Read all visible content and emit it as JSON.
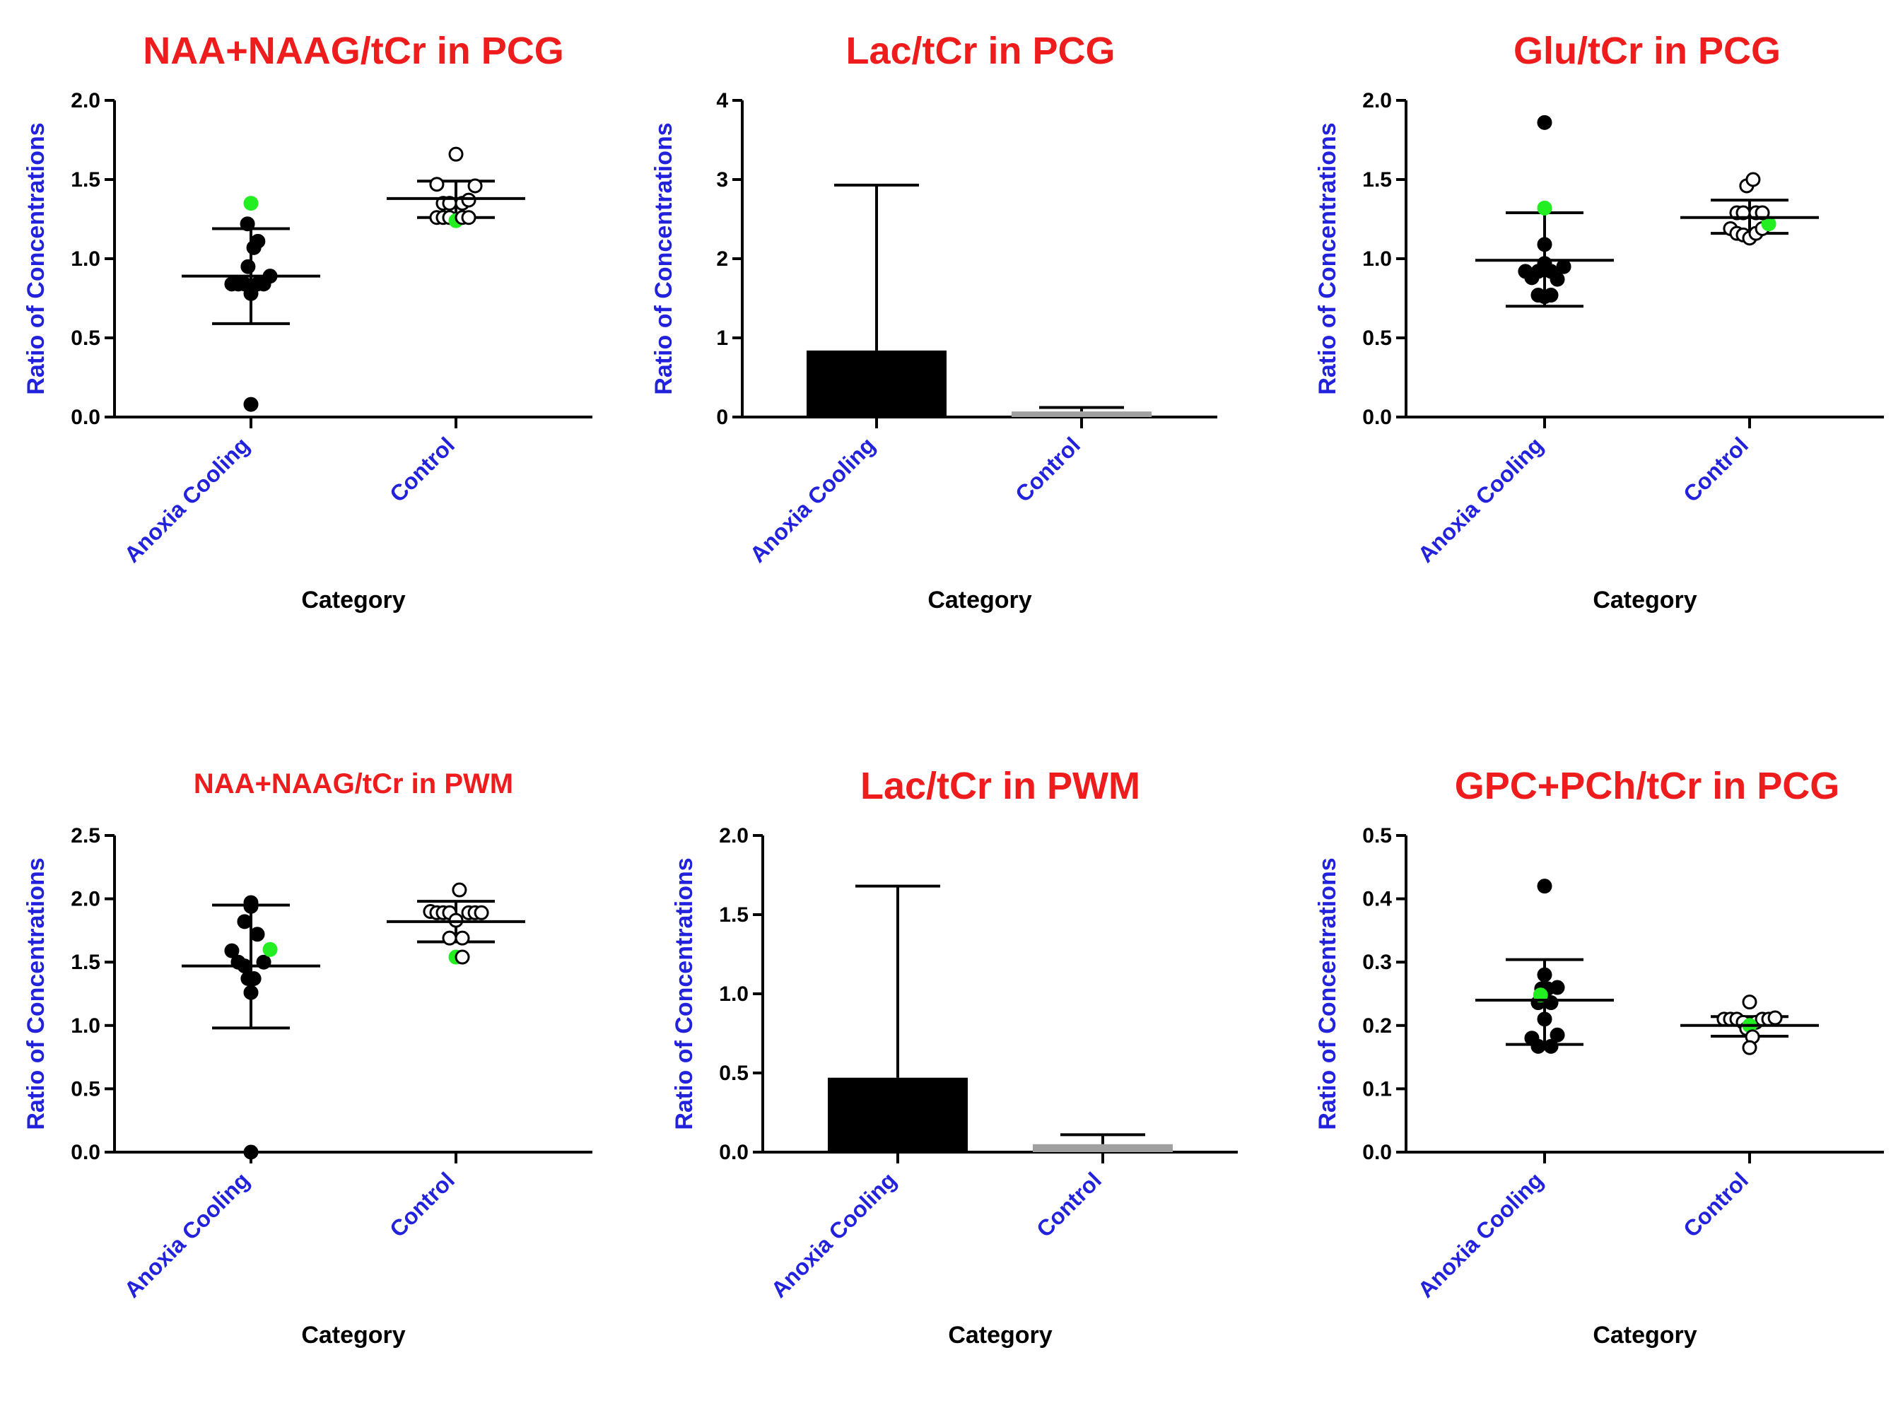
{
  "figure": {
    "colors": {
      "title": "#ee1c1c",
      "ylabel": "#2222dd",
      "category": "#2222dd",
      "highlight": "#22ee22",
      "bar_anoxia": "#000000",
      "bar_control": "#a0a0a0"
    }
  },
  "chart_data": [
    {
      "type": "scatter",
      "title": "NAA+NAAG/tCr in PCG",
      "xlabel": "Category",
      "ylabel": "Ratio of Concentrations",
      "categories": [
        "Anoxia Cooling",
        "Control"
      ],
      "ylim": [
        0,
        2.0
      ],
      "yticks": [
        0.0,
        0.5,
        1.0,
        1.5,
        2.0
      ],
      "tick_labels": [
        "0.0",
        "0.5",
        "1.0",
        "1.5",
        "2.0"
      ],
      "series": [
        {
          "name": "Anoxia Cooling",
          "marker": "filled",
          "mean": 0.89,
          "err_low": 0.59,
          "err_high": 1.19,
          "points": [
            {
              "x": -0.33,
              "y": 0.84
            },
            {
              "x": -0.22,
              "y": 0.84
            },
            {
              "x": -0.11,
              "y": 0.84
            },
            {
              "x": 0.0,
              "y": 0.78
            },
            {
              "x": 0.11,
              "y": 0.84
            },
            {
              "x": 0.22,
              "y": 0.84
            },
            {
              "x": 0.33,
              "y": 0.89
            },
            {
              "x": -0.05,
              "y": 0.95
            },
            {
              "x": 0.05,
              "y": 1.07
            },
            {
              "x": 0.12,
              "y": 1.11
            },
            {
              "x": -0.06,
              "y": 1.22
            },
            {
              "x": 0.0,
              "y": 1.35,
              "highlight": true
            },
            {
              "x": 0.0,
              "y": 0.08
            }
          ]
        },
        {
          "name": "Control",
          "marker": "open",
          "mean": 1.38,
          "err_low": 1.26,
          "err_high": 1.49,
          "points": [
            {
              "x": -0.33,
              "y": 1.26
            },
            {
              "x": -0.22,
              "y": 1.26
            },
            {
              "x": -0.11,
              "y": 1.26
            },
            {
              "x": 0.0,
              "y": 1.24,
              "highlight": true
            },
            {
              "x": 0.11,
              "y": 1.26
            },
            {
              "x": 0.22,
              "y": 1.26
            },
            {
              "x": -0.22,
              "y": 1.35
            },
            {
              "x": -0.11,
              "y": 1.35
            },
            {
              "x": 0.11,
              "y": 1.35
            },
            {
              "x": 0.22,
              "y": 1.37
            },
            {
              "x": -0.33,
              "y": 1.47
            },
            {
              "x": 0.33,
              "y": 1.46
            },
            {
              "x": 0.0,
              "y": 1.66
            }
          ]
        }
      ]
    },
    {
      "type": "bar",
      "title": "Lac/tCr in PCG",
      "xlabel": "Category",
      "ylabel": "Ratio of Concentrations",
      "categories": [
        "Anoxia Cooling",
        "Control"
      ],
      "ylim": [
        0,
        4
      ],
      "yticks": [
        0,
        1,
        2,
        3,
        4
      ],
      "tick_labels": [
        "0",
        "1",
        "2",
        "3",
        "4"
      ],
      "values": [
        0.84,
        0.07
      ],
      "errors_high": [
        2.93,
        0.12
      ]
    },
    {
      "type": "scatter",
      "title": "Glu/tCr in PCG",
      "xlabel": "Category",
      "ylabel": "Ratio of Concentrations",
      "categories": [
        "Anoxia Cooling",
        "Control"
      ],
      "ylim": [
        0,
        2.0
      ],
      "yticks": [
        0.0,
        0.5,
        1.0,
        1.5,
        2.0
      ],
      "tick_labels": [
        "0.0",
        "0.5",
        "1.0",
        "1.5",
        "2.0"
      ],
      "series": [
        {
          "name": "Anoxia Cooling",
          "marker": "filled",
          "mean": 0.99,
          "err_low": 0.7,
          "err_high": 1.29,
          "points": [
            {
              "x": -0.33,
              "y": 0.92
            },
            {
              "x": -0.22,
              "y": 0.88
            },
            {
              "x": -0.11,
              "y": 0.77
            },
            {
              "x": 0.0,
              "y": 0.76
            },
            {
              "x": 0.11,
              "y": 0.77
            },
            {
              "x": 0.22,
              "y": 0.87
            },
            {
              "x": 0.33,
              "y": 0.95
            },
            {
              "x": -0.11,
              "y": 0.92
            },
            {
              "x": 0.11,
              "y": 0.92
            },
            {
              "x": 0.0,
              "y": 0.97
            },
            {
              "x": 0.0,
              "y": 1.09
            },
            {
              "x": 0.0,
              "y": 1.32,
              "highlight": true
            },
            {
              "x": 0.0,
              "y": 1.86
            }
          ]
        },
        {
          "name": "Control",
          "marker": "open",
          "mean": 1.26,
          "err_low": 1.16,
          "err_high": 1.37,
          "points": [
            {
              "x": -0.33,
              "y": 1.19
            },
            {
              "x": -0.22,
              "y": 1.16
            },
            {
              "x": -0.11,
              "y": 1.15
            },
            {
              "x": 0.0,
              "y": 1.13
            },
            {
              "x": 0.11,
              "y": 1.16
            },
            {
              "x": 0.22,
              "y": 1.19
            },
            {
              "x": 0.33,
              "y": 1.22,
              "highlight": true
            },
            {
              "x": -0.22,
              "y": 1.29
            },
            {
              "x": -0.11,
              "y": 1.29
            },
            {
              "x": 0.11,
              "y": 1.29
            },
            {
              "x": 0.22,
              "y": 1.29
            },
            {
              "x": -0.05,
              "y": 1.46
            },
            {
              "x": 0.06,
              "y": 1.5
            }
          ]
        }
      ]
    },
    {
      "type": "scatter",
      "title": "NAA+NAAG/tCr in PWM",
      "xlabel": "Category",
      "ylabel": "Ratio of Concentrations",
      "categories": [
        "Anoxia Cooling",
        "Control"
      ],
      "ylim": [
        0,
        2.5
      ],
      "yticks": [
        0.0,
        0.5,
        1.0,
        1.5,
        2.0,
        2.5
      ],
      "tick_labels": [
        "0.0",
        "0.5",
        "1.0",
        "1.5",
        "2.0",
        "2.5"
      ],
      "series": [
        {
          "name": "Anoxia Cooling",
          "marker": "filled",
          "mean": 1.47,
          "err_low": 0.98,
          "err_high": 1.95,
          "points": [
            {
              "x": -0.33,
              "y": 1.59
            },
            {
              "x": -0.22,
              "y": 1.5
            },
            {
              "x": -0.11,
              "y": 1.47
            },
            {
              "x": -0.05,
              "y": 1.37
            },
            {
              "x": 0.05,
              "y": 1.37
            },
            {
              "x": 0.22,
              "y": 1.5
            },
            {
              "x": 0.0,
              "y": 1.26
            },
            {
              "x": -0.11,
              "y": 1.82
            },
            {
              "x": 0.11,
              "y": 1.72
            },
            {
              "x": 0.0,
              "y": 1.94
            },
            {
              "x": 0.0,
              "y": 1.97
            },
            {
              "x": 0.33,
              "y": 1.6,
              "highlight": true
            },
            {
              "x": 0.0,
              "y": 0.0
            }
          ]
        },
        {
          "name": "Control",
          "marker": "open",
          "mean": 1.82,
          "err_low": 1.66,
          "err_high": 1.98,
          "points": [
            {
              "x": -0.44,
              "y": 1.9
            },
            {
              "x": -0.33,
              "y": 1.89
            },
            {
              "x": -0.22,
              "y": 1.89
            },
            {
              "x": -0.11,
              "y": 1.89
            },
            {
              "x": 0.22,
              "y": 1.89
            },
            {
              "x": 0.33,
              "y": 1.89
            },
            {
              "x": 0.44,
              "y": 1.89
            },
            {
              "x": -0.11,
              "y": 1.69
            },
            {
              "x": 0.11,
              "y": 1.69
            },
            {
              "x": 0.0,
              "y": 1.54,
              "highlight": true
            },
            {
              "x": 0.11,
              "y": 1.54
            },
            {
              "x": 0.0,
              "y": 1.83
            },
            {
              "x": 0.06,
              "y": 2.07
            }
          ]
        }
      ]
    },
    {
      "type": "bar",
      "title": "Lac/tCr in PWM",
      "xlabel": "Category",
      "ylabel": "Ratio of Concentrations",
      "categories": [
        "Anoxia Cooling",
        "Control"
      ],
      "ylim": [
        0,
        2.0
      ],
      "yticks": [
        0.0,
        0.5,
        1.0,
        1.5,
        2.0
      ],
      "tick_labels": [
        "0.0",
        "0.5",
        "1.0",
        "1.5",
        "2.0"
      ],
      "values": [
        0.47,
        0.05
      ],
      "errors_high": [
        1.68,
        0.11
      ]
    },
    {
      "type": "scatter",
      "title": "GPC+PCh/tCr in PCG",
      "xlabel": "Category",
      "ylabel": "Ratio of Concentrations",
      "categories": [
        "Anoxia Cooling",
        "Control"
      ],
      "ylim": [
        0,
        0.5
      ],
      "yticks": [
        0.0,
        0.1,
        0.2,
        0.3,
        0.4,
        0.5
      ],
      "tick_labels": [
        "0.0",
        "0.1",
        "0.2",
        "0.3",
        "0.4",
        "0.5"
      ],
      "series": [
        {
          "name": "Anoxia Cooling",
          "marker": "filled",
          "mean": 0.24,
          "err_low": 0.17,
          "err_high": 0.304,
          "points": [
            {
              "x": -0.22,
              "y": 0.18
            },
            {
              "x": -0.11,
              "y": 0.167
            },
            {
              "x": 0.0,
              "y": 0.21
            },
            {
              "x": 0.11,
              "y": 0.167
            },
            {
              "x": 0.22,
              "y": 0.185
            },
            {
              "x": -0.11,
              "y": 0.236
            },
            {
              "x": 0.11,
              "y": 0.236
            },
            {
              "x": -0.05,
              "y": 0.258
            },
            {
              "x": 0.05,
              "y": 0.258
            },
            {
              "x": 0.22,
              "y": 0.26
            },
            {
              "x": 0.0,
              "y": 0.28
            },
            {
              "x": -0.07,
              "y": 0.248,
              "highlight": true
            },
            {
              "x": 0.0,
              "y": 0.42
            }
          ]
        },
        {
          "name": "Control",
          "marker": "open",
          "mean": 0.2,
          "err_low": 0.183,
          "err_high": 0.214,
          "points": [
            {
              "x": -0.44,
              "y": 0.21
            },
            {
              "x": -0.33,
              "y": 0.21
            },
            {
              "x": -0.22,
              "y": 0.21
            },
            {
              "x": -0.11,
              "y": 0.205
            },
            {
              "x": 0.11,
              "y": 0.205
            },
            {
              "x": 0.22,
              "y": 0.21
            },
            {
              "x": 0.33,
              "y": 0.21
            },
            {
              "x": 0.44,
              "y": 0.212
            },
            {
              "x": -0.05,
              "y": 0.195
            },
            {
              "x": 0.0,
              "y": 0.2,
              "highlight": true
            },
            {
              "x": 0.05,
              "y": 0.182
            },
            {
              "x": 0.0,
              "y": 0.165
            },
            {
              "x": 0.0,
              "y": 0.237
            }
          ]
        }
      ]
    }
  ]
}
